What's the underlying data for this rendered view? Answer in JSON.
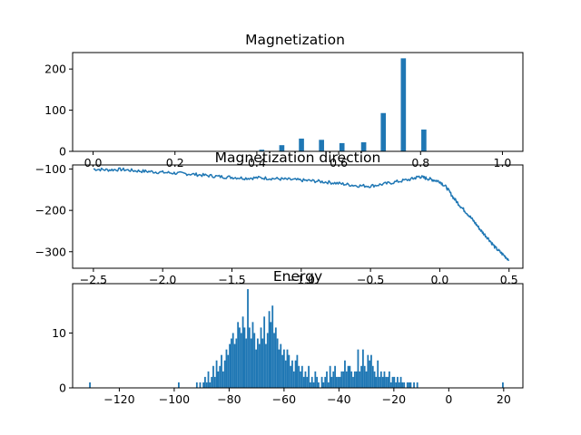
{
  "figure": {
    "background": "#ffffff",
    "accent": "#1f77b4"
  },
  "chart_data": [
    {
      "type": "bar",
      "title": "Magnetization",
      "xlim": [
        -0.05,
        1.05
      ],
      "ylim": [
        0,
        240
      ],
      "xticks": [
        0.0,
        0.2,
        0.4,
        0.6,
        0.8,
        1.0
      ],
      "xtick_labels": [
        "0.0",
        "0.2",
        "0.4",
        "0.6",
        "0.8",
        "1.0"
      ],
      "yticks": [
        0,
        100,
        200
      ],
      "ytick_labels": [
        "0",
        "100",
        "200"
      ],
      "bin_width": 0.0125,
      "bars": [
        {
          "x": 0.0,
          "value": 0
        },
        {
          "x": 0.412,
          "value": 4
        },
        {
          "x": 0.461,
          "value": 15
        },
        {
          "x": 0.509,
          "value": 31
        },
        {
          "x": 0.558,
          "value": 28
        },
        {
          "x": 0.608,
          "value": 20
        },
        {
          "x": 0.661,
          "value": 22
        },
        {
          "x": 0.709,
          "value": 93
        },
        {
          "x": 0.758,
          "value": 226
        },
        {
          "x": 0.808,
          "value": 53
        }
      ],
      "color": "#1f77b4",
      "grid": false
    },
    {
      "type": "line",
      "title": "Magnetization direction",
      "xlim": [
        -2.65,
        0.6
      ],
      "ylim": [
        -340,
        -90
      ],
      "xticks": [
        -2.5,
        -2.0,
        -1.5,
        -1.0,
        -0.5,
        0.0,
        0.5
      ],
      "xtick_labels": [
        "−2.5",
        "−2.0",
        "−1.5",
        "−1.0",
        "−0.5",
        "0.0",
        "0.5"
      ],
      "yticks": [
        -100,
        -200,
        -300
      ],
      "ytick_labels": [
        "−100",
        "−200",
        "−300"
      ],
      "series": [
        {
          "color": "#1f77b4",
          "x": [
            -2.5,
            -2.4,
            -2.3,
            -2.2,
            -2.1,
            -2.0,
            -1.9,
            -1.8,
            -1.7,
            -1.6,
            -1.5,
            -1.4,
            -1.3,
            -1.2,
            -1.1,
            -1.0,
            -0.9,
            -0.8,
            -0.7,
            -0.6,
            -0.5,
            -0.4,
            -0.3,
            -0.2,
            -0.15,
            -0.1,
            -0.05,
            0.0,
            0.05,
            0.1,
            0.15,
            0.2,
            0.25,
            0.3,
            0.35,
            0.4,
            0.45,
            0.5
          ],
          "y": [
            -100,
            -102,
            -101,
            -104,
            -106,
            -108,
            -110,
            -112,
            -115,
            -118,
            -120,
            -122,
            -121,
            -123,
            -125,
            -127,
            -129,
            -132,
            -136,
            -140,
            -141,
            -136,
            -130,
            -124,
            -118,
            -122,
            -126,
            -130,
            -145,
            -170,
            -190,
            -208,
            -228,
            -250,
            -268,
            -290,
            -305,
            -320
          ]
        }
      ],
      "grid": false
    },
    {
      "type": "bar",
      "title": "Energy",
      "xlim": [
        -137,
        27
      ],
      "ylim": [
        0,
        19
      ],
      "xticks": [
        -120,
        -100,
        -80,
        -60,
        -40,
        -20,
        0,
        20
      ],
      "xtick_labels": [
        "−120",
        "−100",
        "−80",
        "−60",
        "−40",
        "−20",
        "0",
        "20"
      ],
      "yticks": [
        0,
        10
      ],
      "ytick_labels": [
        "0",
        "10"
      ],
      "bin_width": 0.6,
      "histogram": {
        "range": [
          -131,
          20
        ],
        "values": [
          1,
          0,
          0,
          0,
          0,
          0,
          0,
          0,
          0,
          0,
          0,
          0,
          0,
          0,
          0,
          0,
          0,
          0,
          0,
          0,
          0,
          0,
          0,
          0,
          0,
          0,
          0,
          0,
          0,
          0,
          0,
          0,
          0,
          0,
          0,
          0,
          0,
          0,
          0,
          0,
          0,
          0,
          0,
          0,
          0,
          0,
          0,
          0,
          0,
          0,
          0,
          0,
          0,
          0,
          1,
          0,
          0,
          0,
          0,
          0,
          0,
          0,
          0,
          0,
          0,
          1,
          0,
          1,
          0,
          1,
          2,
          1,
          3,
          1,
          2,
          4,
          2,
          5,
          3,
          4,
          6,
          3,
          5,
          7,
          6,
          8,
          9,
          10,
          8,
          9,
          12,
          11,
          10,
          13,
          11,
          9,
          18,
          11,
          9,
          12,
          10,
          7,
          9,
          8,
          11,
          9,
          13,
          8,
          10,
          14,
          12,
          15,
          10,
          11,
          9,
          7,
          8,
          6,
          7,
          5,
          7,
          6,
          4,
          5,
          3,
          5,
          6,
          4,
          3,
          4,
          2,
          3,
          2,
          4,
          1,
          2,
          1,
          3,
          2,
          1,
          0,
          2,
          1,
          2,
          3,
          1,
          4,
          2,
          3,
          4,
          2,
          2,
          2,
          3,
          3,
          5,
          3,
          4,
          4,
          3,
          2,
          3,
          3,
          7,
          3,
          4,
          7,
          4,
          3,
          6,
          5,
          6,
          4,
          3,
          2,
          5,
          2,
          3,
          2,
          3,
          2,
          2,
          3,
          1,
          2,
          2,
          1,
          2,
          1,
          2,
          1,
          1,
          0,
          1,
          1,
          1,
          0,
          1,
          0,
          1,
          0,
          0,
          0,
          0,
          0,
          0,
          0,
          0,
          0,
          0,
          0,
          0,
          0,
          0,
          0,
          0,
          0,
          0,
          0,
          0,
          0,
          0,
          0,
          0,
          0,
          0,
          0,
          0,
          0,
          0,
          0,
          0,
          0,
          0,
          0,
          0,
          0,
          0,
          0,
          0,
          0,
          0,
          0,
          0,
          0,
          0,
          0,
          0,
          0,
          0,
          0,
          1
        ]
      },
      "color": "#1f77b4",
      "grid": false
    }
  ]
}
